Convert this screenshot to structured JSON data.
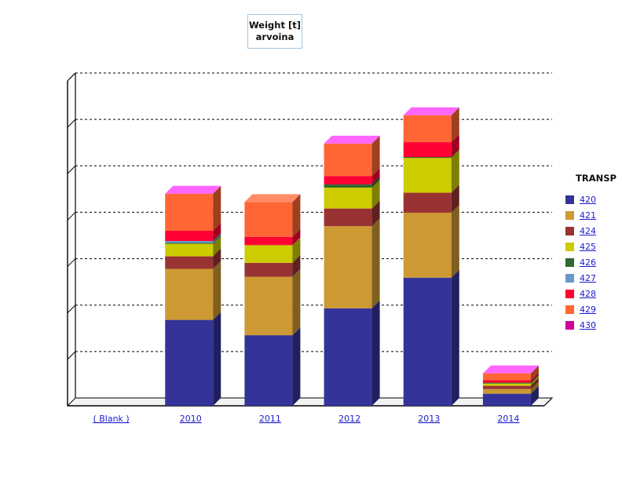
{
  "title": {
    "line1": "Weight [t]",
    "line2": "arvoina"
  },
  "legend": {
    "title": "TRANSP"
  },
  "chart_data": {
    "type": "bar",
    "stacked": true,
    "three_d": true,
    "categories": [
      "( Blank )",
      "2010",
      "2011",
      "2012",
      "2013",
      "2014"
    ],
    "series": [
      {
        "name": "420",
        "color": "#333399",
        "values": [
          0,
          1.85,
          1.52,
          2.1,
          2.76,
          0.26
        ]
      },
      {
        "name": "421",
        "color": "#cc9933",
        "values": [
          0,
          1.1,
          1.26,
          1.77,
          1.4,
          0.1
        ]
      },
      {
        "name": "424",
        "color": "#993333",
        "values": [
          0,
          0.27,
          0.3,
          0.38,
          0.43,
          0.07
        ]
      },
      {
        "name": "425",
        "color": "#cccc00",
        "values": [
          0,
          0.27,
          0.38,
          0.45,
          0.75,
          0.05
        ]
      },
      {
        "name": "426",
        "color": "#336633",
        "values": [
          0,
          0.02,
          0,
          0.07,
          0.02,
          0.02
        ]
      },
      {
        "name": "427",
        "color": "#6699cc",
        "values": [
          0,
          0.04,
          0,
          0,
          0,
          0
        ]
      },
      {
        "name": "428",
        "color": "#ff0033",
        "values": [
          0,
          0.22,
          0.18,
          0.18,
          0.32,
          0.05
        ]
      },
      {
        "name": "429",
        "color": "#ff6633",
        "values": [
          0,
          0.8,
          0.75,
          0.7,
          0.58,
          0.15
        ]
      },
      {
        "name": "430",
        "color": "#cc0099",
        "values": [
          0,
          0,
          0,
          0,
          0,
          0
        ]
      }
    ],
    "ylim": [
      0,
      7
    ],
    "grid": true,
    "legend_position": "right"
  }
}
